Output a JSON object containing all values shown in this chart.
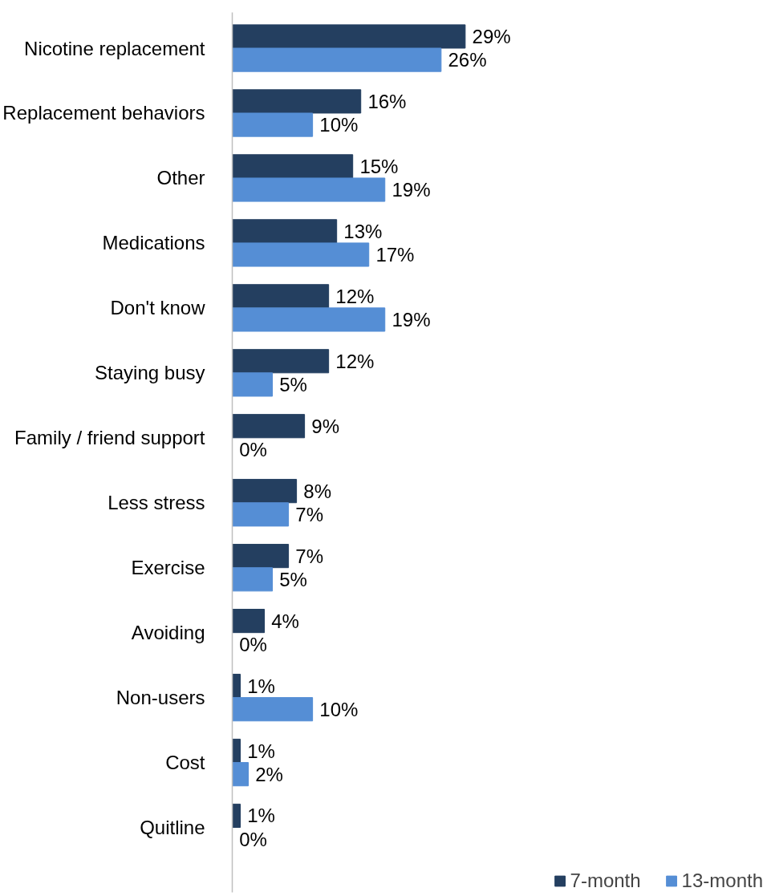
{
  "chart_data": {
    "type": "bar",
    "orientation": "horizontal",
    "categories": [
      "Nicotine replacement",
      "Replacement behaviors",
      "Other",
      "Medications",
      "Don't know",
      "Staying busy",
      "Family / friend support",
      "Less stress",
      "Exercise",
      "Avoiding",
      "Non-users",
      "Cost",
      "Quitline"
    ],
    "series": [
      {
        "name": "7-month",
        "color": "#243f60",
        "values": [
          29,
          16,
          15,
          13,
          12,
          12,
          9,
          8,
          7,
          4,
          1,
          1,
          1
        ],
        "value_labels": [
          "29%",
          "16%",
          "15%",
          "13%",
          "12%",
          "12%",
          "9%",
          "8%",
          "7%",
          "4%",
          "1%",
          "1%",
          "1%"
        ]
      },
      {
        "name": "13-month",
        "color": "#558ed5",
        "values": [
          26,
          10,
          19,
          17,
          19,
          5,
          0,
          7,
          5,
          0,
          10,
          2,
          0
        ],
        "value_labels": [
          "26%",
          "10%",
          "19%",
          "17%",
          "19%",
          "5%",
          "0%",
          "7%",
          "5%",
          "0%",
          "10%",
          "2%",
          "0%"
        ]
      }
    ],
    "legend": "bottom right"
  }
}
